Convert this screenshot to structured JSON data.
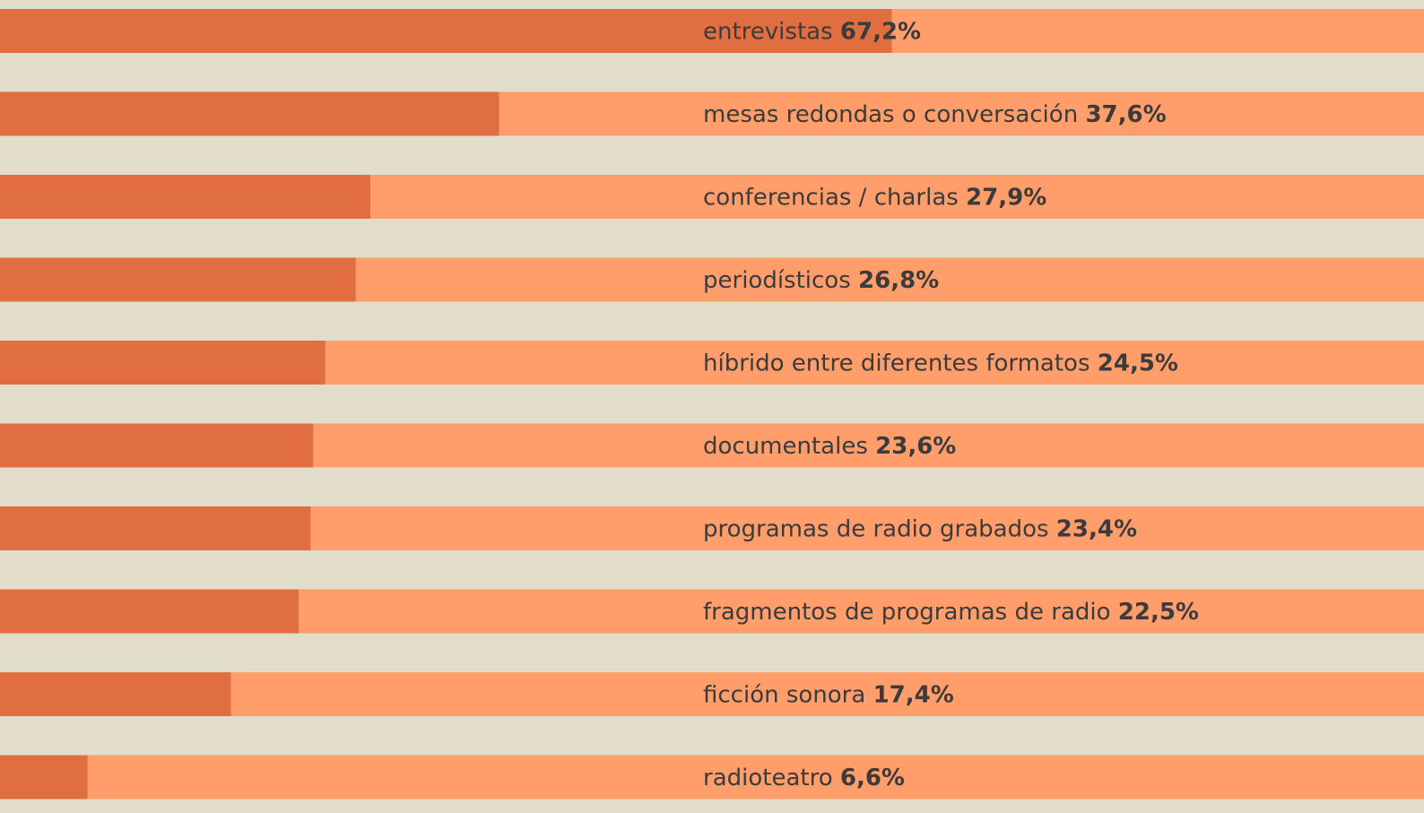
{
  "chart_data": {
    "type": "bar",
    "orientation": "horizontal",
    "categories": [
      "entrevistas",
      "mesas redondas o conversación",
      "conferencias / charlas",
      "periodísticos",
      "híbrido entre diferentes formatos",
      "documentales",
      "programas de radio grabados",
      "fragmentos de programas de radio",
      "ficción sonora",
      "radioteatro"
    ],
    "values": [
      67.2,
      37.6,
      27.9,
      26.8,
      24.5,
      23.6,
      23.4,
      22.5,
      17.4,
      6.6
    ],
    "value_labels": [
      "67,2%",
      "37,6%",
      "27,9%",
      "26,8%",
      "24,5%",
      "23,6%",
      "23,4%",
      "22,5%",
      "17,4%",
      "6,6%"
    ],
    "color": "#e06e40",
    "track_color": "#ff9d6b",
    "xlim": [
      0,
      100
    ]
  }
}
